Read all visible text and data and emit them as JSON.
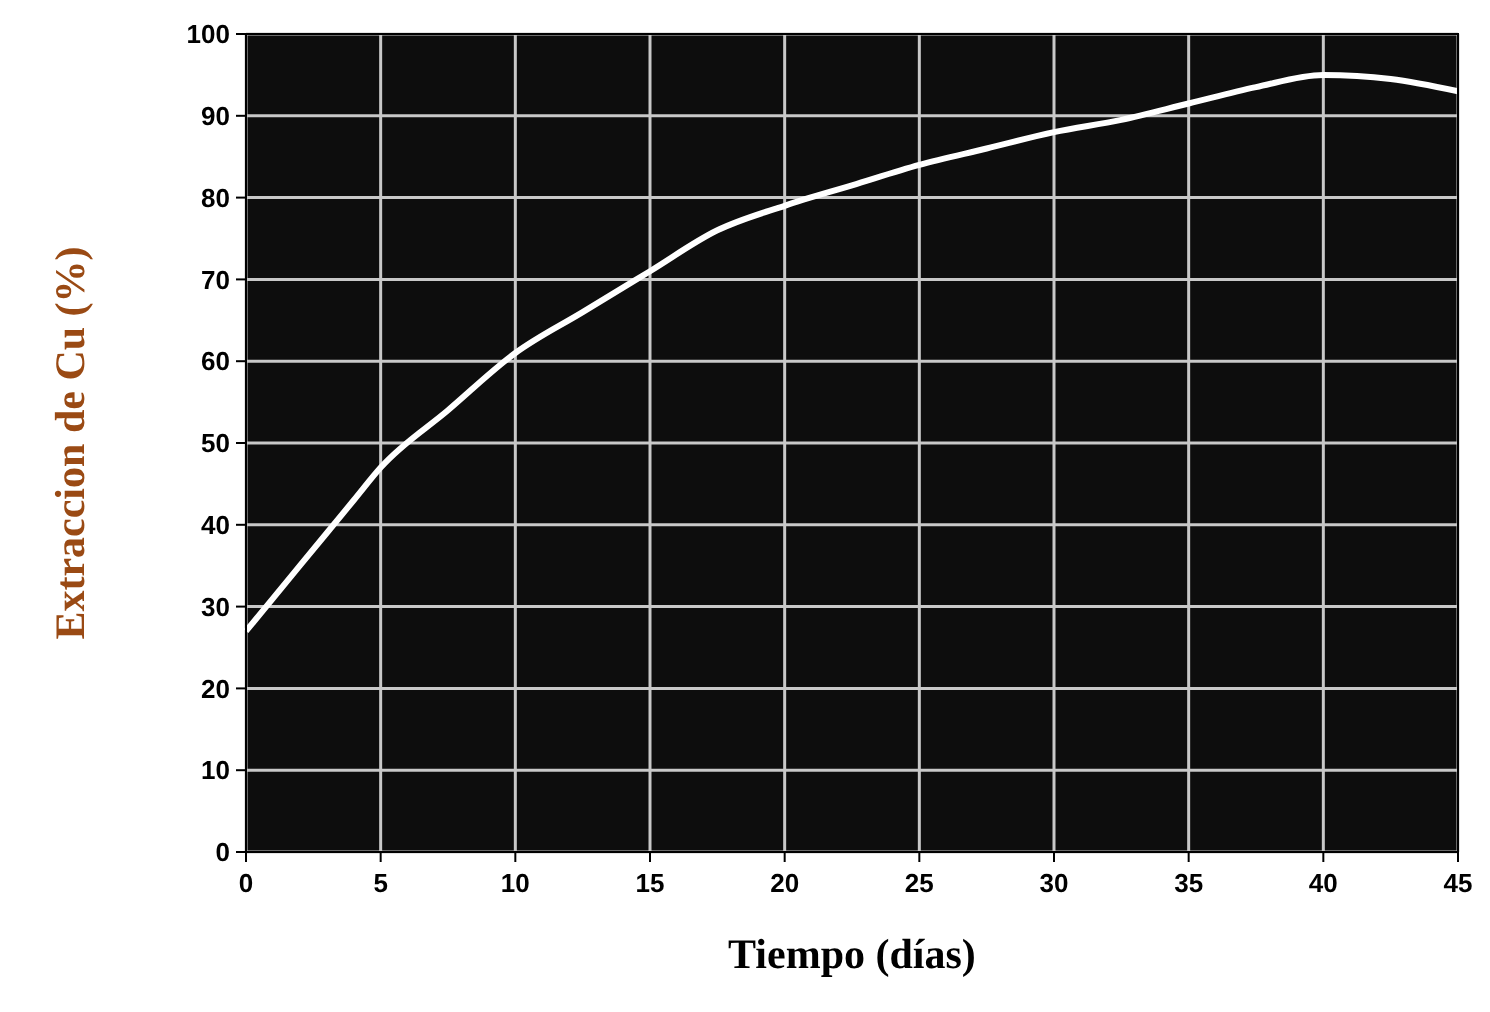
{
  "chart_data": {
    "type": "line",
    "xlabel": "Tiempo (días)",
    "ylabel": "Extraccion de Cu (%)",
    "x": [
      0,
      2,
      4,
      5,
      7.5,
      10,
      12.5,
      15,
      17.5,
      20,
      22.5,
      25,
      27.5,
      30,
      32.5,
      35,
      37.5,
      40,
      42.5,
      45
    ],
    "series": [
      {
        "color": "#ffffff",
        "values": [
          27,
          35,
          43,
          47,
          54,
          61,
          66,
          71,
          76,
          79,
          81.5,
          84,
          86,
          88,
          89.5,
          91.5,
          93.5,
          95,
          94.5,
          93
        ]
      }
    ],
    "xlim": [
      0,
      45
    ],
    "xticks": [
      0,
      5,
      10,
      15,
      20,
      25,
      30,
      35,
      40,
      45
    ],
    "ylim": [
      0,
      100
    ],
    "yticks": [
      0,
      10,
      20,
      30,
      40,
      50,
      60,
      70,
      80,
      90,
      100
    ],
    "grid": true,
    "marker": "none",
    "line_style": "solid"
  }
}
